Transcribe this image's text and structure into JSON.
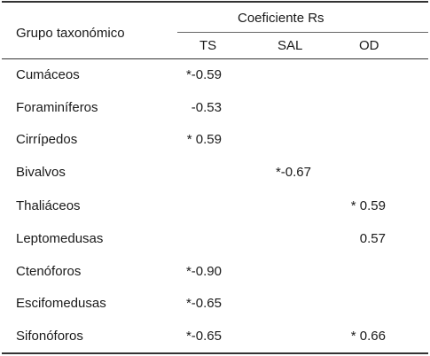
{
  "table": {
    "header": {
      "group_label": "Grupo taxonómico",
      "coef_label": "Coeficiente Rs",
      "columns": [
        "TS",
        "SAL",
        "OD"
      ]
    },
    "rows": [
      {
        "taxon": "Cumáceos",
        "TS": "*-0.59",
        "SAL": "",
        "OD": ""
      },
      {
        "taxon": "Foraminíferos",
        "TS": "-0.53",
        "SAL": "",
        "OD": ""
      },
      {
        "taxon": "Cirrípedos",
        "TS": "* 0.59",
        "SAL": "",
        "OD": ""
      },
      {
        "taxon": "Bivalvos",
        "TS": "",
        "SAL": "*-0.67",
        "OD": ""
      },
      {
        "taxon": "Thaliáceos",
        "TS": "",
        "SAL": "",
        "OD": "* 0.59"
      },
      {
        "taxon": "Leptomedusas",
        "TS": "",
        "SAL": "",
        "OD": "0.57"
      },
      {
        "taxon": "Ctenóforos",
        "TS": "*-0.90",
        "SAL": "",
        "OD": ""
      },
      {
        "taxon": "Escifomedusas",
        "TS": "*-0.65",
        "SAL": "",
        "OD": ""
      },
      {
        "taxon": "Sifonóforos",
        "TS": "*-0.65",
        "SAL": "",
        "OD": "* 0.66"
      }
    ]
  }
}
